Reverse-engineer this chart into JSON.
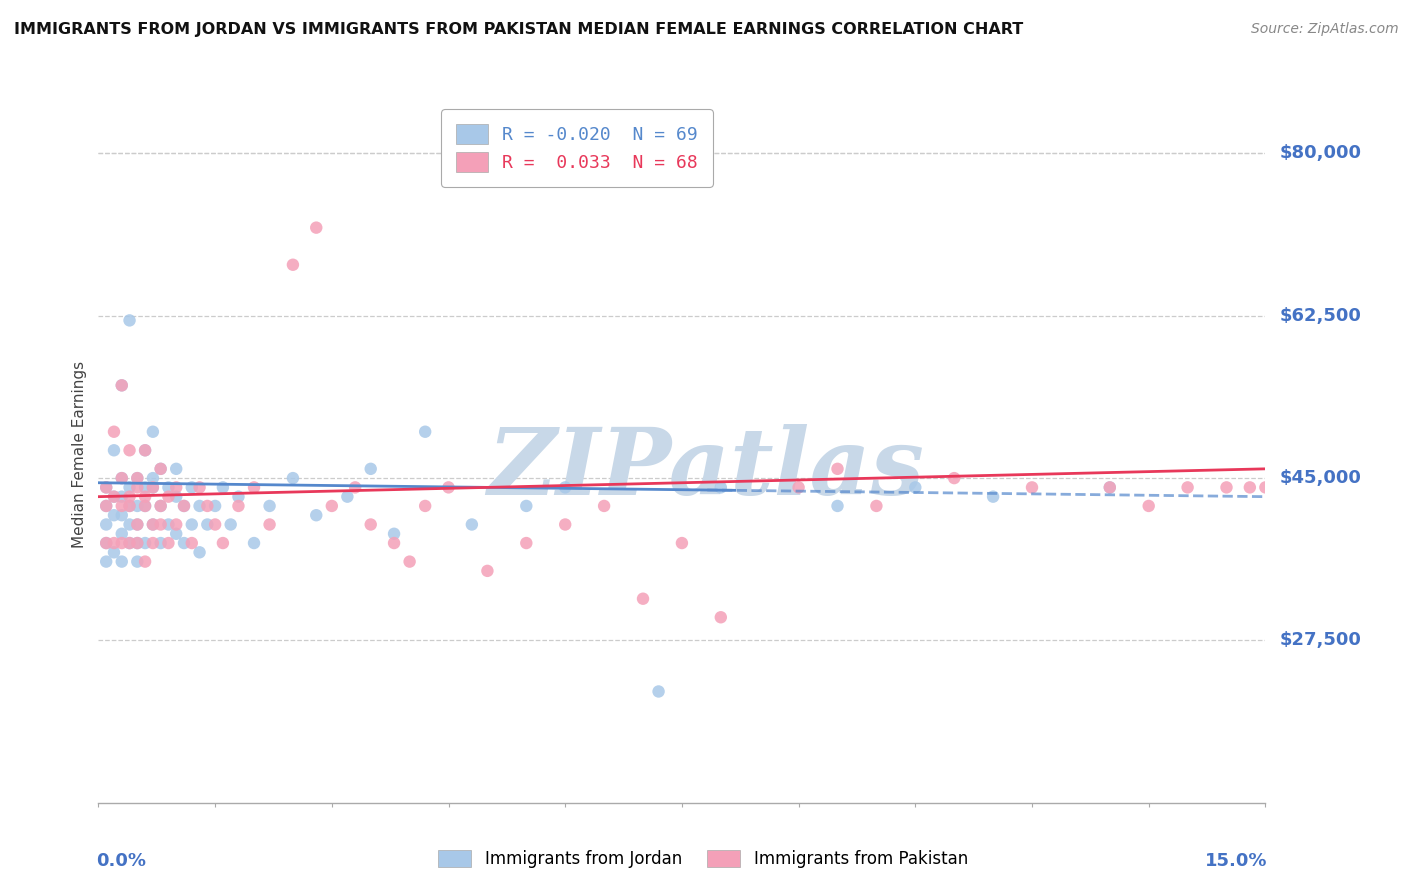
{
  "title": "IMMIGRANTS FROM JORDAN VS IMMIGRANTS FROM PAKISTAN MEDIAN FEMALE EARNINGS CORRELATION CHART",
  "source": "Source: ZipAtlas.com",
  "ylabel": "Median Female Earnings",
  "jordan_color": "#a8c8e8",
  "pakistan_color": "#f4a0b8",
  "jordan_line_color": "#5588cc",
  "pakistan_line_color": "#e8385a",
  "jordan_R": -0.02,
  "jordan_N": 69,
  "pakistan_R": 0.033,
  "pakistan_N": 68,
  "background_color": "#ffffff",
  "grid_color": "#cccccc",
  "watermark": "ZIPatlas",
  "watermark_color": "#c8d8e8",
  "xmin": 0.0,
  "xmax": 0.15,
  "ymin": 10000,
  "ymax": 85000,
  "ytick_vals": [
    27500,
    45000,
    62500,
    80000
  ],
  "ytick_labels": [
    "$27,500",
    "$45,000",
    "$62,500",
    "$80,000"
  ],
  "jordan_x": [
    0.001,
    0.001,
    0.001,
    0.001,
    0.001,
    0.002,
    0.002,
    0.002,
    0.002,
    0.003,
    0.003,
    0.003,
    0.003,
    0.003,
    0.003,
    0.004,
    0.004,
    0.004,
    0.004,
    0.004,
    0.005,
    0.005,
    0.005,
    0.005,
    0.005,
    0.006,
    0.006,
    0.006,
    0.006,
    0.007,
    0.007,
    0.007,
    0.007,
    0.008,
    0.008,
    0.008,
    0.009,
    0.009,
    0.01,
    0.01,
    0.01,
    0.011,
    0.011,
    0.012,
    0.012,
    0.013,
    0.013,
    0.014,
    0.015,
    0.016,
    0.017,
    0.018,
    0.02,
    0.022,
    0.025,
    0.028,
    0.032,
    0.035,
    0.038,
    0.042,
    0.048,
    0.055,
    0.06,
    0.072,
    0.08,
    0.095,
    0.105,
    0.115,
    0.13
  ],
  "jordan_y": [
    42000,
    38000,
    44000,
    36000,
    40000,
    48000,
    43000,
    37000,
    41000,
    55000,
    45000,
    39000,
    43000,
    36000,
    41000,
    62000,
    44000,
    38000,
    42000,
    40000,
    45000,
    38000,
    42000,
    36000,
    40000,
    48000,
    42000,
    38000,
    44000,
    50000,
    44000,
    40000,
    45000,
    46000,
    42000,
    38000,
    44000,
    40000,
    43000,
    46000,
    39000,
    42000,
    38000,
    44000,
    40000,
    42000,
    37000,
    40000,
    42000,
    44000,
    40000,
    43000,
    38000,
    42000,
    45000,
    41000,
    43000,
    46000,
    39000,
    50000,
    40000,
    42000,
    44000,
    22000,
    44000,
    42000,
    44000,
    43000,
    44000
  ],
  "pakistan_x": [
    0.001,
    0.001,
    0.001,
    0.002,
    0.002,
    0.002,
    0.003,
    0.003,
    0.003,
    0.003,
    0.004,
    0.004,
    0.004,
    0.004,
    0.005,
    0.005,
    0.005,
    0.005,
    0.006,
    0.006,
    0.006,
    0.006,
    0.007,
    0.007,
    0.007,
    0.008,
    0.008,
    0.008,
    0.009,
    0.009,
    0.01,
    0.01,
    0.011,
    0.012,
    0.013,
    0.014,
    0.015,
    0.016,
    0.018,
    0.02,
    0.022,
    0.025,
    0.028,
    0.03,
    0.033,
    0.035,
    0.038,
    0.04,
    0.042,
    0.045,
    0.05,
    0.055,
    0.06,
    0.065,
    0.07,
    0.075,
    0.08,
    0.09,
    0.095,
    0.1,
    0.11,
    0.12,
    0.13,
    0.135,
    0.14,
    0.145,
    0.148,
    0.15
  ],
  "pakistan_y": [
    44000,
    38000,
    42000,
    50000,
    43000,
    38000,
    55000,
    45000,
    42000,
    38000,
    48000,
    43000,
    38000,
    42000,
    45000,
    40000,
    38000,
    44000,
    42000,
    48000,
    36000,
    43000,
    44000,
    40000,
    38000,
    42000,
    46000,
    40000,
    43000,
    38000,
    44000,
    40000,
    42000,
    38000,
    44000,
    42000,
    40000,
    38000,
    42000,
    44000,
    40000,
    68000,
    72000,
    42000,
    44000,
    40000,
    38000,
    36000,
    42000,
    44000,
    35000,
    38000,
    40000,
    42000,
    32000,
    38000,
    30000,
    44000,
    46000,
    42000,
    45000,
    44000,
    44000,
    42000,
    44000,
    44000,
    44000,
    44000
  ]
}
